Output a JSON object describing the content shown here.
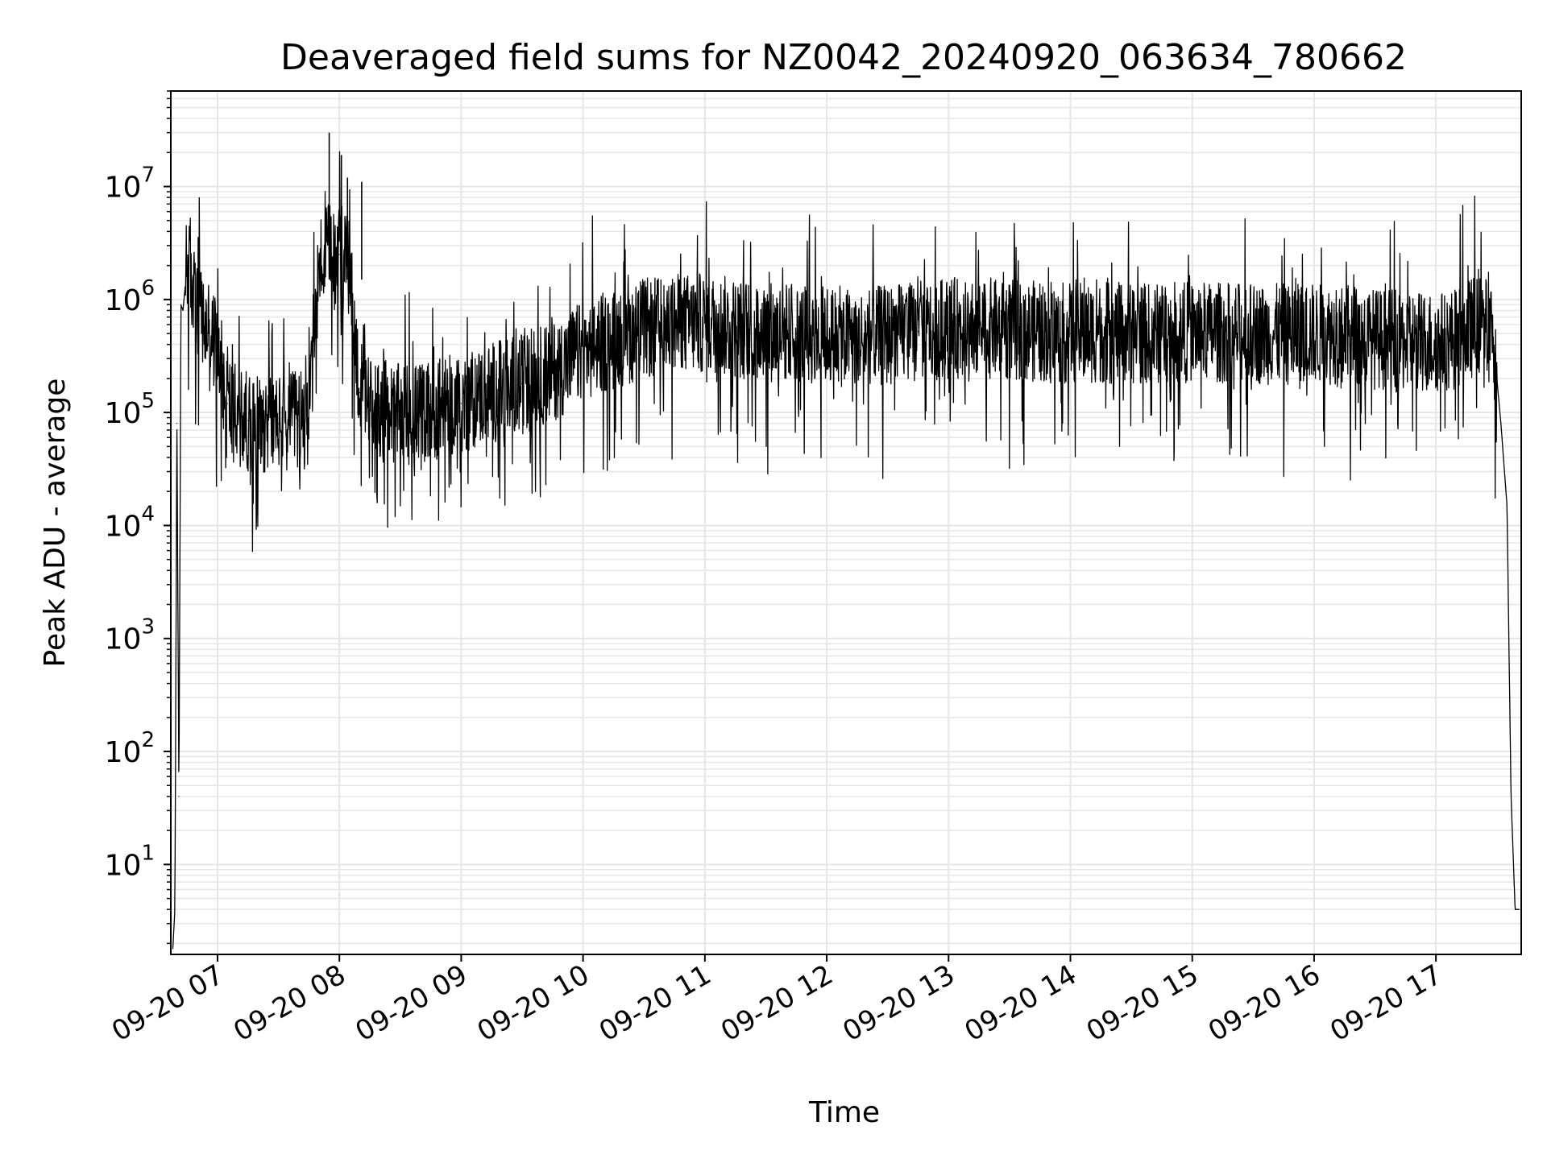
{
  "chart_data": {
    "type": "line",
    "title": "Deaveraged field sums for NZ0042_20240920_063634_780662",
    "xlabel": "Time",
    "ylabel": "Peak ADU - average",
    "y_scale": "log",
    "grid": true,
    "grid_minor": true,
    "legend": "none",
    "line_color": "#000000",
    "grid_color": "#e6e6e6",
    "xlim": [
      "2024-09-20 06:37",
      "2024-09-20 17:42"
    ],
    "ylim": [
      1.6,
      70000000
    ],
    "x_ticks": [
      {
        "t": "2024-09-20 07:00",
        "label": "09-20 07"
      },
      {
        "t": "2024-09-20 08:00",
        "label": "09-20 08"
      },
      {
        "t": "2024-09-20 09:00",
        "label": "09-20 09"
      },
      {
        "t": "2024-09-20 10:00",
        "label": "09-20 10"
      },
      {
        "t": "2024-09-20 11:00",
        "label": "09-20 11"
      },
      {
        "t": "2024-09-20 12:00",
        "label": "09-20 12"
      },
      {
        "t": "2024-09-20 13:00",
        "label": "09-20 13"
      },
      {
        "t": "2024-09-20 14:00",
        "label": "09-20 14"
      },
      {
        "t": "2024-09-20 15:00",
        "label": "09-20 15"
      },
      {
        "t": "2024-09-20 16:00",
        "label": "09-20 16"
      },
      {
        "t": "2024-09-20 17:00",
        "label": "09-20 17"
      }
    ],
    "y_ticks": [
      {
        "value": 10,
        "base": "10",
        "exp": "1"
      },
      {
        "value": 100,
        "base": "10",
        "exp": "2"
      },
      {
        "value": 1000,
        "base": "10",
        "exp": "3"
      },
      {
        "value": 10000,
        "base": "10",
        "exp": "4"
      },
      {
        "value": 100000,
        "base": "10",
        "exp": "5"
      },
      {
        "value": 1000000,
        "base": "10",
        "exp": "6"
      },
      {
        "value": 10000000,
        "base": "10",
        "exp": "7"
      }
    ],
    "series": [
      {
        "x": [
          "2024-09-20 06:38",
          "2024-09-20 06:39",
          "2024-09-20 06:40",
          "2024-09-20 06:41",
          "2024-09-20 06:42",
          "2024-09-20 06:43",
          "2024-09-20 06:45",
          "2024-09-20 06:47",
          "2024-09-20 06:50",
          "2024-09-20 06:55",
          "2024-09-20 07:00",
          "2024-09-20 07:05",
          "2024-09-20 07:10",
          "2024-09-20 07:15",
          "2024-09-20 07:20",
          "2024-09-20 07:25",
          "2024-09-20 07:30",
          "2024-09-20 07:35",
          "2024-09-20 07:40",
          "2024-09-20 07:45",
          "2024-09-20 07:50",
          "2024-09-20 07:55",
          "2024-09-20 08:00",
          "2024-09-20 08:05",
          "2024-09-20 08:10",
          "2024-09-20 08:15",
          "2024-09-20 08:20",
          "2024-09-20 08:30",
          "2024-09-20 08:40",
          "2024-09-20 08:50",
          "2024-09-20 09:00",
          "2024-09-20 09:15",
          "2024-09-20 09:30",
          "2024-09-20 09:45",
          "2024-09-20 10:00",
          "2024-09-20 10:15",
          "2024-09-20 10:30",
          "2024-09-20 10:45",
          "2024-09-20 11:00",
          "2024-09-20 11:15",
          "2024-09-20 11:30",
          "2024-09-20 11:45",
          "2024-09-20 12:00",
          "2024-09-20 12:15",
          "2024-09-20 12:30",
          "2024-09-20 12:45",
          "2024-09-20 13:00",
          "2024-09-20 13:15",
          "2024-09-20 13:30",
          "2024-09-20 13:45",
          "2024-09-20 14:00",
          "2024-09-20 14:15",
          "2024-09-20 14:30",
          "2024-09-20 14:45",
          "2024-09-20 15:00",
          "2024-09-20 15:15",
          "2024-09-20 15:30",
          "2024-09-20 15:45",
          "2024-09-20 16:00",
          "2024-09-20 16:15",
          "2024-09-20 16:30",
          "2024-09-20 16:45",
          "2024-09-20 17:00",
          "2024-09-20 17:10",
          "2024-09-20 17:20",
          "2024-09-20 17:28",
          "2024-09-20 17:32",
          "2024-09-20 17:35",
          "2024-09-20 17:37",
          "2024-09-20 17:39",
          "2024-09-20 17:41"
        ],
        "y": [
          1.8,
          4,
          80000,
          40,
          900000,
          800000,
          2000000,
          1500000,
          800000,
          500000,
          400000,
          120000,
          90000,
          85000,
          80000,
          85000,
          80000,
          80000,
          85000,
          90000,
          2000000,
          2500000,
          2500000,
          2000000,
          150000,
          120000,
          110000,
          95000,
          100000,
          110000,
          120000,
          150000,
          180000,
          230000,
          350000,
          450000,
          550000,
          600000,
          620000,
          560000,
          520000,
          500000,
          480000,
          450000,
          480000,
          520000,
          560000,
          560000,
          540000,
          520000,
          500000,
          510000,
          500000,
          500000,
          520000,
          510000,
          500000,
          490000,
          500000,
          480000,
          450000,
          430000,
          420000,
          450000,
          600000,
          500000,
          80000,
          15000,
          40,
          4,
          4
        ]
      }
    ]
  }
}
